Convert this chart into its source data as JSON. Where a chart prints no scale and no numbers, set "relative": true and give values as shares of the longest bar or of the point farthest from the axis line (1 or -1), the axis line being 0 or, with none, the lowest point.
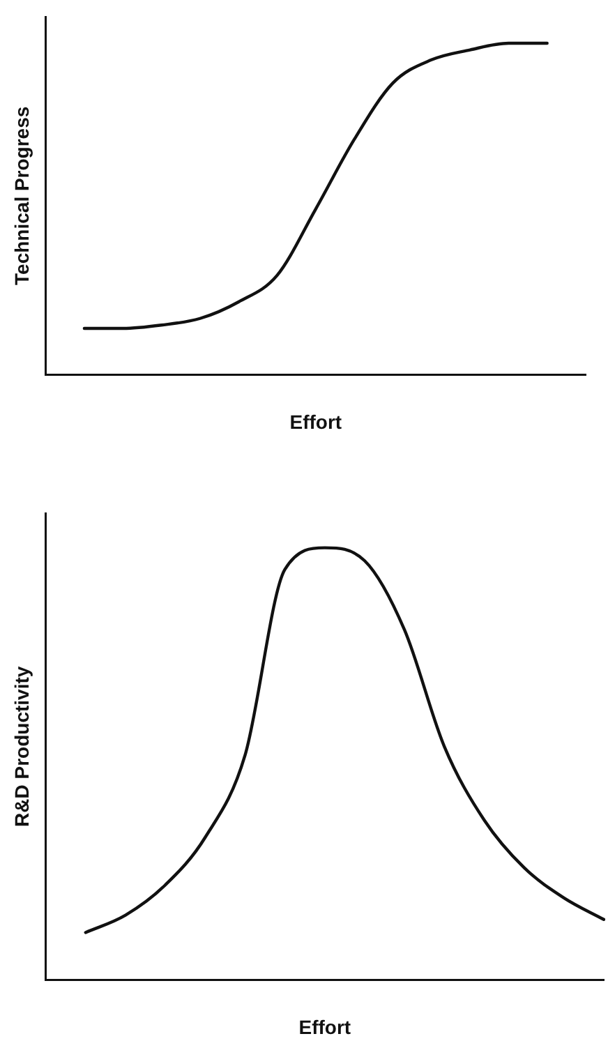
{
  "chart_data": [
    {
      "type": "line",
      "relative": true,
      "xlabel": "Effort",
      "ylabel": "Technical Progress",
      "grid": false,
      "legend": false,
      "marker": "none",
      "line_style": "solid",
      "categories": [
        null,
        null,
        null,
        null,
        null,
        null,
        null,
        null,
        null,
        null,
        null,
        null,
        null,
        null,
        null
      ],
      "series": [
        {
          "color": "#111111",
          "values": [
            null,
            0.14,
            0.14,
            0.15,
            0.17,
            0.22,
            0.3,
            0.5,
            0.71,
            0.88,
            0.95,
            0.98,
            1,
            1,
            null
          ]
        }
      ]
    },
    {
      "type": "line",
      "relative": true,
      "xlabel": "Effort",
      "ylabel": "R&D Productivity",
      "grid": false,
      "legend": false,
      "marker": "none",
      "line_style": "solid",
      "categories": [
        null,
        null,
        null,
        null,
        null,
        null,
        null,
        null,
        null,
        null,
        null,
        null,
        null,
        null,
        null
      ],
      "series": [
        {
          "color": "#111111",
          "values": [
            null,
            0.11,
            0.15,
            0.22,
            0.33,
            0.52,
            0.95,
            1,
            0.97,
            0.81,
            0.54,
            0.37,
            0.26,
            0.19,
            0.14
          ]
        }
      ]
    }
  ]
}
